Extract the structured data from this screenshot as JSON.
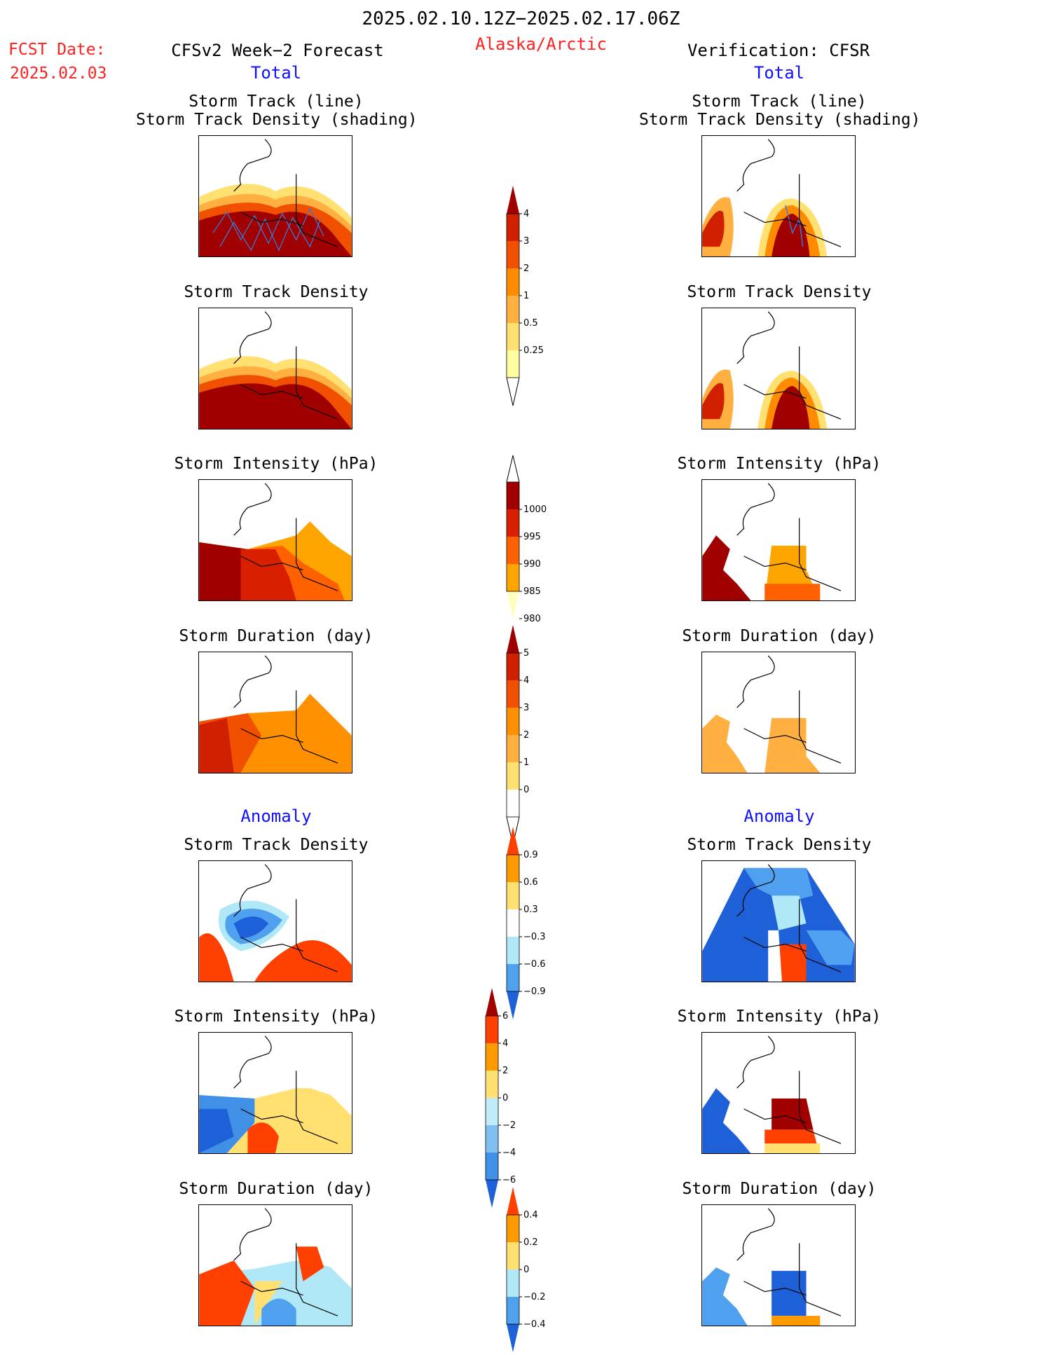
{
  "header": {
    "date_range": "2025.02.10.12Z−2025.02.17.06Z",
    "fcst_label": "FCST Date:",
    "fcst_date": "2025.02.03",
    "left_title": "CFSv2 Week−2 Forecast",
    "region": "Alaska/Arctic",
    "right_title": "Verification: CFSR",
    "left_total": "Total",
    "right_total": "Total",
    "left_anomaly": "Anomaly",
    "right_anomaly": "Anomaly"
  },
  "colors": {
    "accent_red": "#ff2020",
    "accent_blue": "#1010ff"
  },
  "panel_titles": {
    "track_line": "Storm Track (line)",
    "track_shading": "Storm Track Density (shading)",
    "density": "Storm Track Density",
    "intensity": "Storm Intensity (hPa)",
    "duration": "Storm Duration (day)"
  },
  "colorbars": {
    "density": {
      "labels": [
        "4",
        "3",
        "2",
        "1",
        "0.5",
        "0.25"
      ],
      "colors": [
        "#ffffa0",
        "#ffe070",
        "#ffb040",
        "#ff8c00",
        "#f05000",
        "#d02000",
        "#a00000"
      ]
    },
    "intensity": {
      "labels": [
        "1000",
        "995",
        "990",
        "985",
        "980"
      ],
      "colors": [
        "#ffffc0",
        "#ffa500",
        "#ff6000",
        "#d82000",
        "#a00000"
      ]
    },
    "duration": {
      "labels": [
        "5",
        "4",
        "3",
        "2",
        "1",
        "0"
      ],
      "colors": [
        "#ffffff",
        "#ffe070",
        "#ffb040",
        "#ff9000",
        "#f05000",
        "#d02000",
        "#a00000"
      ]
    },
    "anom_density": {
      "labels": [
        "0.9",
        "0.6",
        "0.3",
        "−0.3",
        "−0.6",
        "−0.9"
      ],
      "colors": [
        "#1e60d8",
        "#50a0f0",
        "#b0e8f8",
        "#ffffff",
        "#ffe070",
        "#ff9a00",
        "#ff4000"
      ]
    },
    "anom_intensity": {
      "labels": [
        "6",
        "4",
        "2",
        "0",
        "−2",
        "−4",
        "−6"
      ],
      "colors": [
        "#1e60d8",
        "#4090e8",
        "#80c0f0",
        "#c0ecfa",
        "#ffe070",
        "#ff9a00",
        "#ff4000",
        "#a00000"
      ]
    },
    "anom_duration": {
      "labels": [
        "0.4",
        "0.2",
        "0",
        "−0.2",
        "−0.4"
      ],
      "colors": [
        "#1e60d8",
        "#50a0f0",
        "#b0e8f8",
        "#ffe070",
        "#ff9a00",
        "#ff4000"
      ]
    }
  }
}
